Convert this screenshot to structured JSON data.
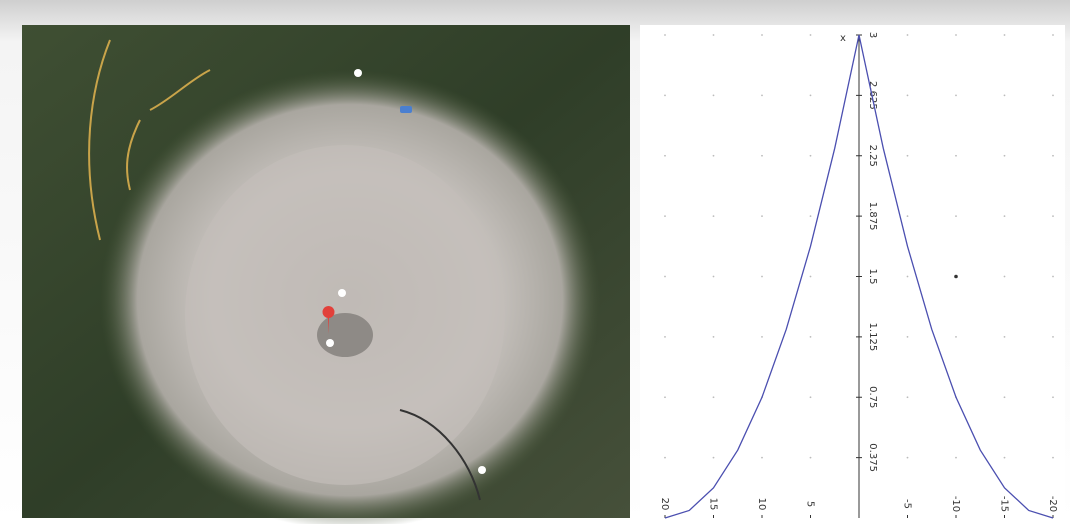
{
  "chart_data": {
    "type": "line",
    "x_label": "x",
    "x": [
      20,
      17.5,
      15,
      12.5,
      10,
      7.5,
      5,
      2.5,
      0,
      -2.5,
      -5,
      -7.5,
      -10,
      -12.5,
      -15,
      -17.5,
      -20
    ],
    "series": [
      {
        "color": "#4b4fb0",
        "values": [
          0,
          0.047,
          0.1875,
          0.422,
          0.75,
          1.172,
          1.6875,
          2.297,
          3,
          2.297,
          1.6875,
          1.172,
          0.75,
          0.422,
          0.1875,
          0.047,
          0
        ]
      }
    ],
    "point": {
      "x": -10,
      "y": 1.5
    },
    "xlim": [
      20,
      -20
    ],
    "ylim": [
      0,
      3
    ],
    "xticks": [
      20,
      15,
      10,
      5,
      -5,
      -10,
      -15,
      -20
    ],
    "yticks": [
      0.375,
      0.75,
      1.125,
      1.5,
      1.875,
      2.25,
      2.625,
      3
    ],
    "grid": true
  }
}
